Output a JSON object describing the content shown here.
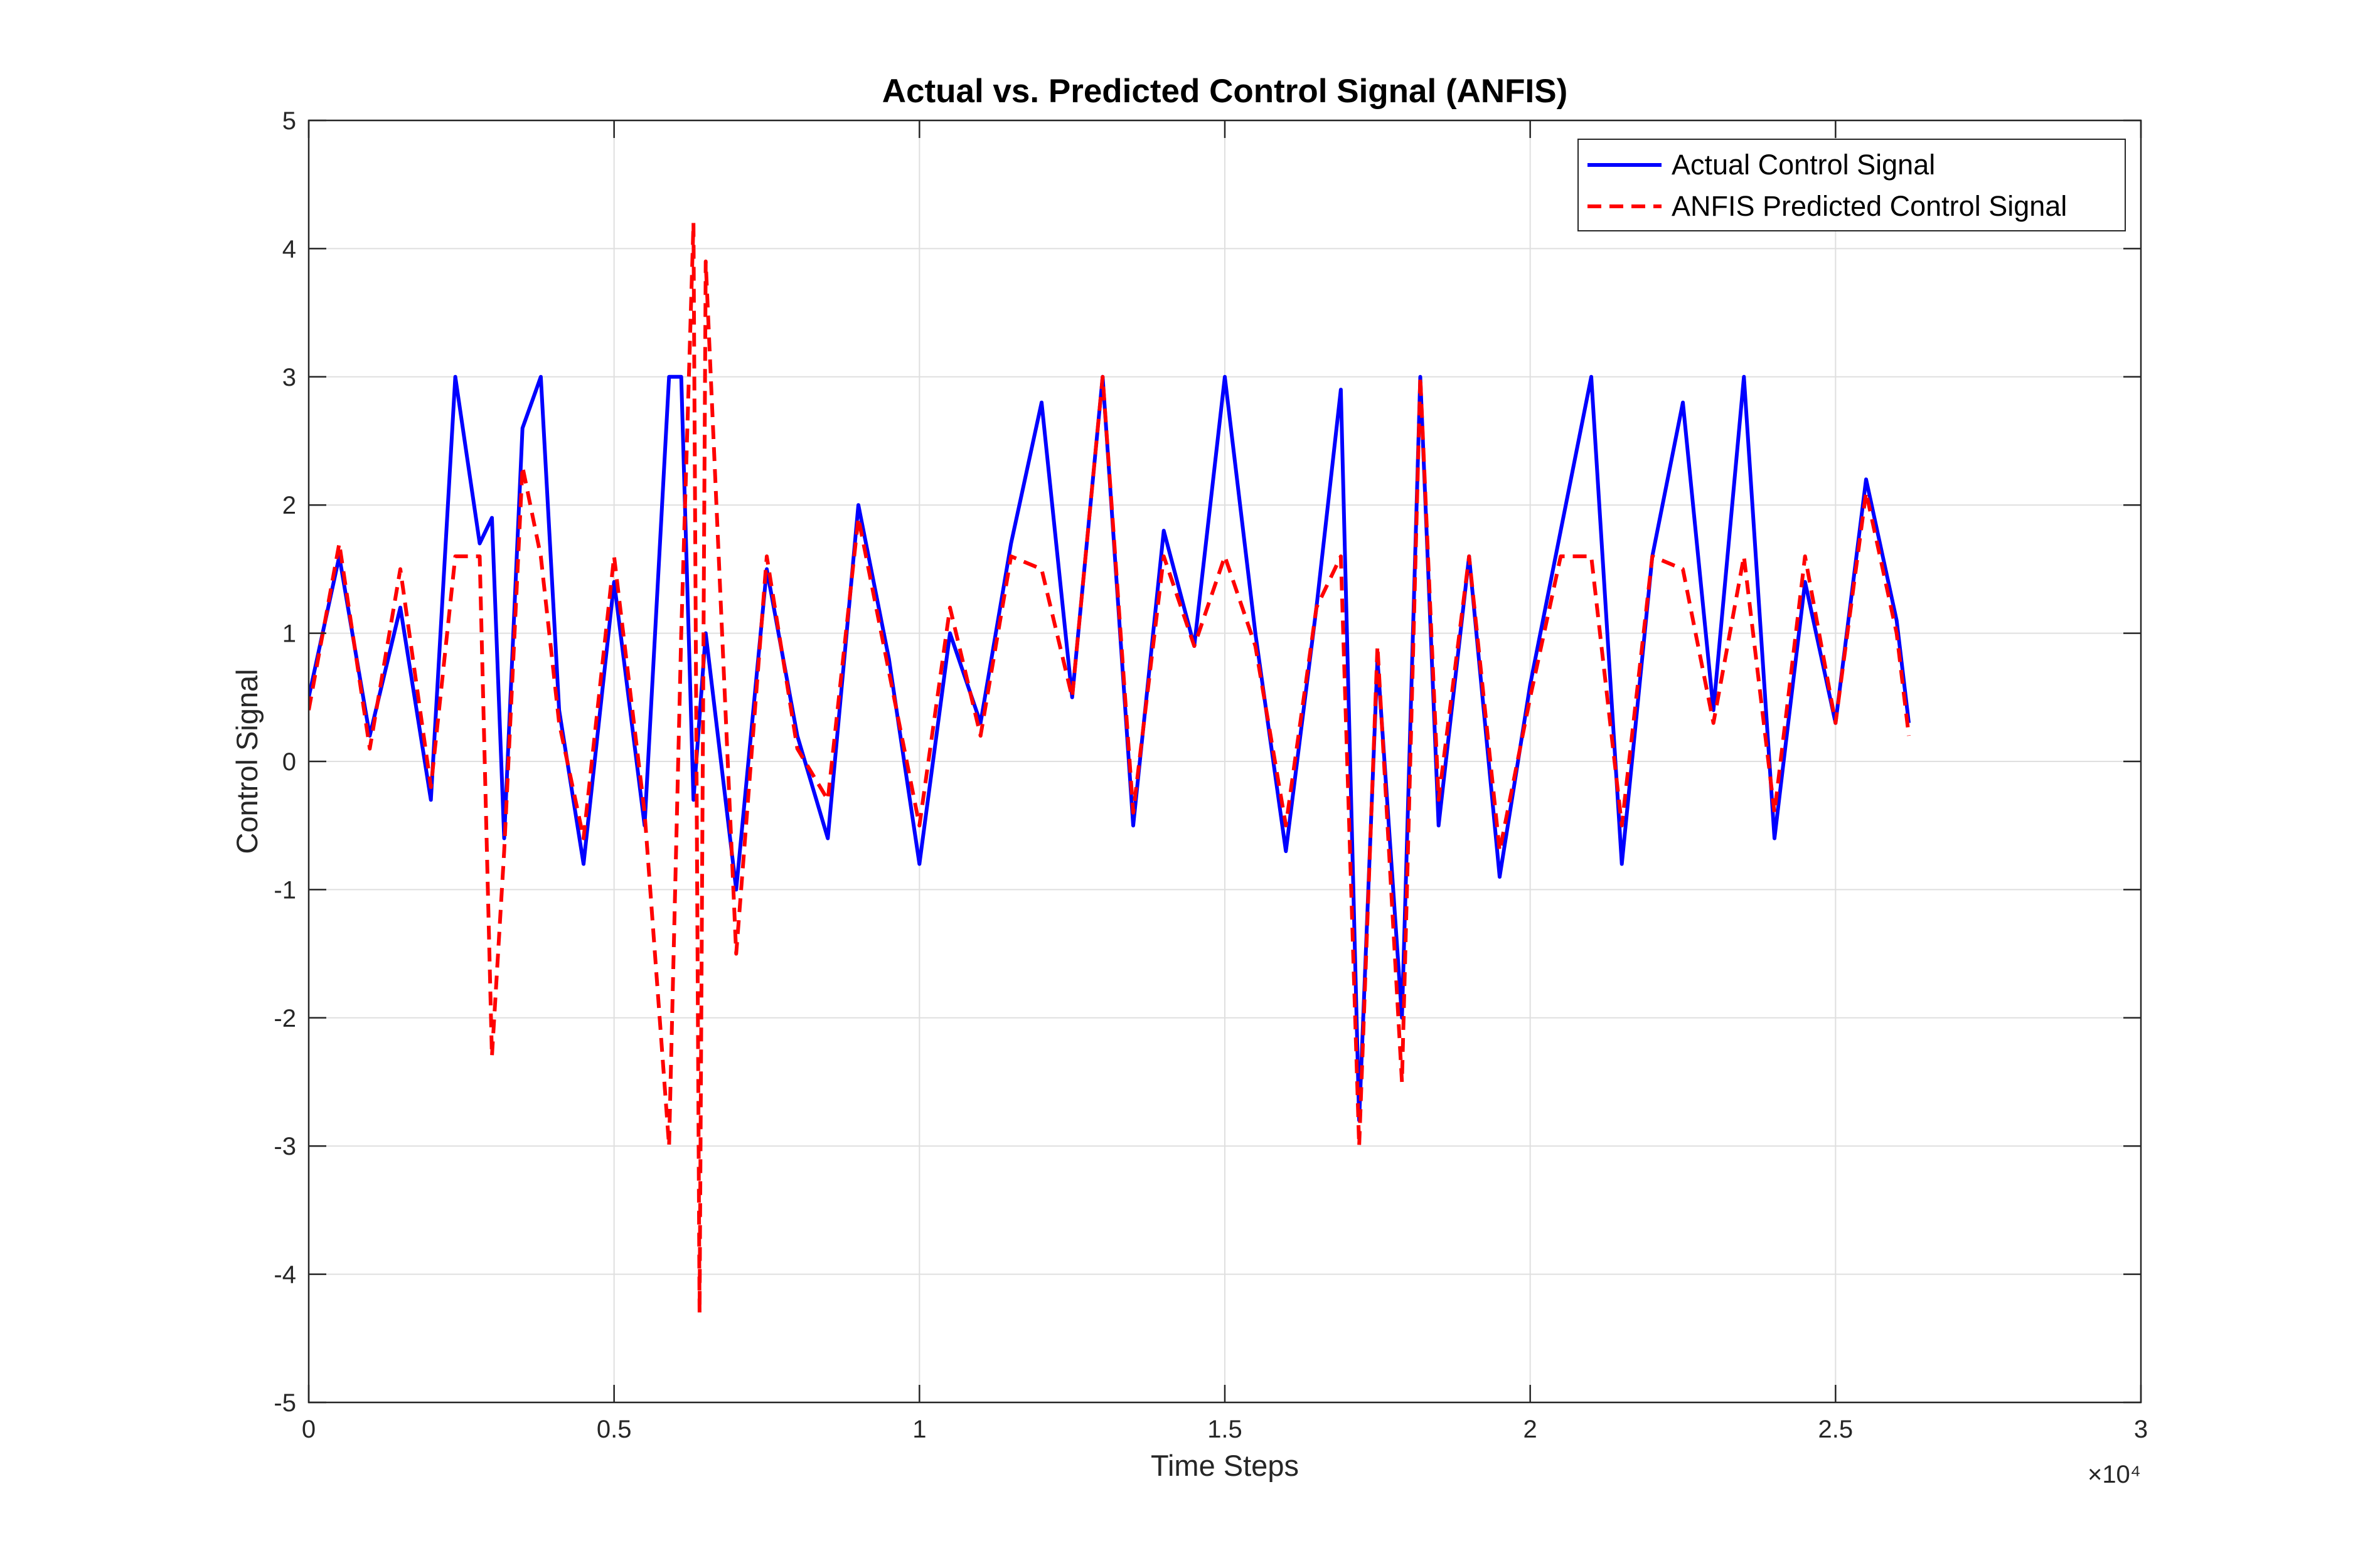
{
  "chart_data": {
    "type": "line",
    "title": "Actual vs. Predicted Control Signal (ANFIS)",
    "xlabel": "Time Steps",
    "ylabel": "Control Signal",
    "x_multiplier_label": "×10⁴",
    "xlim": [
      0,
      30000
    ],
    "ylim": [
      -5,
      5
    ],
    "xticks": [
      0,
      5000,
      10000,
      15000,
      20000,
      25000,
      30000
    ],
    "xtick_labels": [
      "0",
      "0.5",
      "1",
      "1.5",
      "2",
      "2.5",
      "3"
    ],
    "yticks": [
      -5,
      -4,
      -3,
      -2,
      -1,
      0,
      1,
      2,
      3,
      4,
      5
    ],
    "ytick_labels": [
      "-5",
      "-4",
      "-3",
      "-2",
      "-1",
      "0",
      "1",
      "2",
      "3",
      "4",
      "5"
    ],
    "grid": true,
    "legend_position": "top-right",
    "series": [
      {
        "name": "Actual Control Signal",
        "color": "#0000ff",
        "style": "solid",
        "x": [
          0,
          500,
          1000,
          1500,
          2000,
          2400,
          2800,
          3000,
          3200,
          3500,
          3800,
          4100,
          4500,
          5000,
          5500,
          5900,
          6100,
          6300,
          6500,
          7000,
          7500,
          8000,
          8500,
          9000,
          9500,
          10000,
          10500,
          11000,
          11500,
          12000,
          12500,
          13000,
          13500,
          14000,
          14500,
          15000,
          15500,
          16000,
          16500,
          16900,
          17200,
          17500,
          17900,
          18200,
          18500,
          19000,
          19500,
          20000,
          20500,
          21000,
          21500,
          22000,
          22500,
          23000,
          23500,
          24000,
          24500,
          25000,
          25500,
          26000,
          26200
        ],
        "y": [
          0.5,
          1.6,
          0.2,
          1.2,
          -0.3,
          3.0,
          1.7,
          1.9,
          -0.6,
          2.6,
          3.0,
          0.4,
          -0.8,
          1.4,
          -0.5,
          3.0,
          3.0,
          -0.3,
          1.0,
          -1.0,
          1.5,
          0.2,
          -0.6,
          2.0,
          0.8,
          -0.8,
          1.0,
          0.3,
          1.7,
          2.8,
          0.5,
          3.0,
          -0.5,
          1.8,
          0.9,
          3.0,
          1.0,
          -0.7,
          1.2,
          2.9,
          -2.8,
          0.8,
          -2.0,
          3.0,
          -0.5,
          1.6,
          -0.9,
          0.6,
          1.8,
          3.0,
          -0.8,
          1.6,
          2.8,
          0.4,
          3.0,
          -0.6,
          1.4,
          0.3,
          2.2,
          1.1,
          0.3
        ]
      },
      {
        "name": "ANFIS Predicted Control Signal",
        "color": "#ff0000",
        "style": "dashed",
        "x": [
          0,
          500,
          1000,
          1500,
          2000,
          2400,
          2800,
          3000,
          3200,
          3500,
          3800,
          4100,
          4500,
          5000,
          5500,
          5900,
          6100,
          6300,
          6400,
          6500,
          7000,
          7500,
          8000,
          8500,
          9000,
          9500,
          10000,
          10500,
          11000,
          11500,
          12000,
          12500,
          13000,
          13500,
          14000,
          14500,
          15000,
          15500,
          16000,
          16500,
          16900,
          17200,
          17500,
          17900,
          18200,
          18500,
          19000,
          19500,
          20000,
          20500,
          21000,
          21500,
          22000,
          22500,
          23000,
          23500,
          24000,
          24500,
          25000,
          25500,
          26000,
          26200
        ],
        "y": [
          0.4,
          1.7,
          0.1,
          1.5,
          -0.2,
          1.6,
          1.6,
          -2.3,
          -0.7,
          2.3,
          1.6,
          0.3,
          -0.6,
          1.6,
          -0.4,
          -3.0,
          1.0,
          4.2,
          -4.3,
          3.9,
          -1.5,
          1.6,
          0.1,
          -0.3,
          1.9,
          0.7,
          -0.5,
          1.2,
          0.2,
          1.6,
          1.5,
          0.5,
          3.0,
          -0.4,
          1.6,
          0.9,
          1.6,
          0.9,
          -0.5,
          1.2,
          1.6,
          -3.0,
          0.9,
          -2.5,
          3.0,
          -0.3,
          1.6,
          -0.7,
          0.5,
          1.6,
          1.6,
          -0.5,
          1.6,
          1.5,
          0.3,
          1.6,
          -0.4,
          1.6,
          0.3,
          2.1,
          1.0,
          0.2
        ]
      }
    ]
  }
}
